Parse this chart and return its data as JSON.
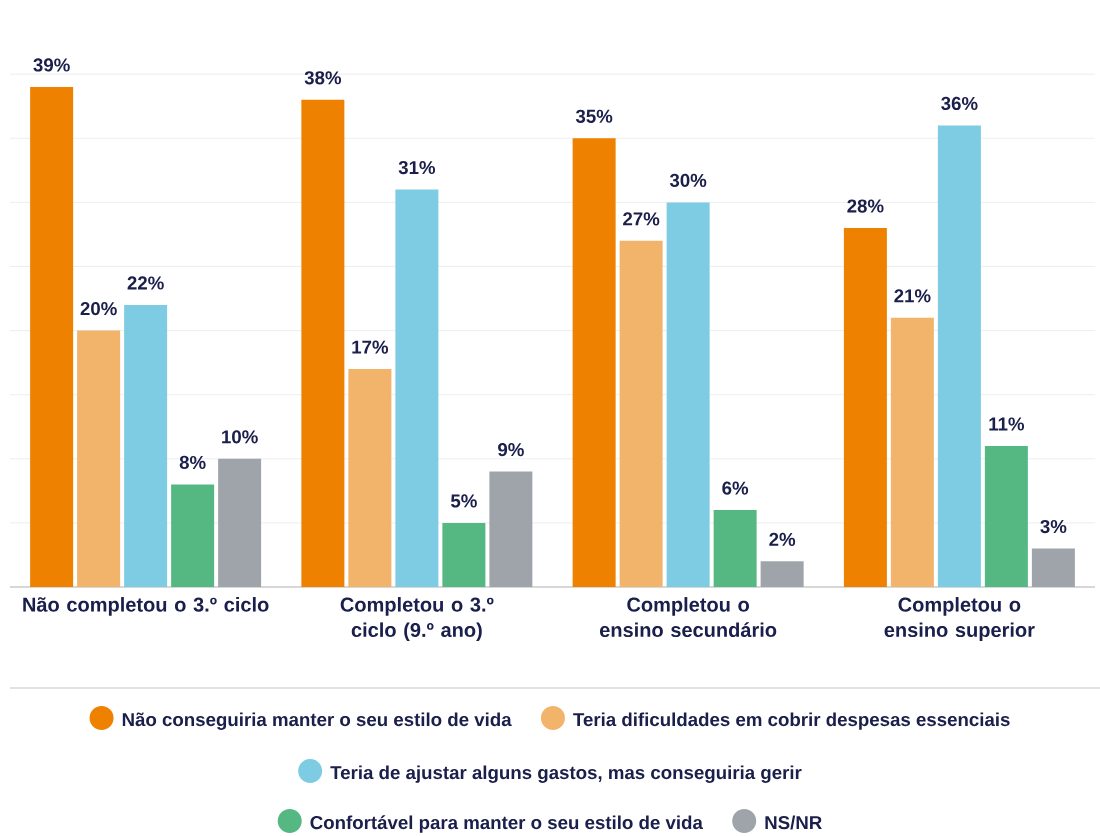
{
  "chart_data": {
    "type": "bar",
    "categories": [
      "Não completou o 3.º ciclo",
      "Completou o 3.º ciclo (9.º ano)",
      "Completou o ensino secundário",
      "Completou o ensino superior"
    ],
    "series": [
      {
        "name": "Não conseguiria manter o seu estilo de vida",
        "color": "#ee8100",
        "values": [
          39,
          38,
          35,
          28
        ],
        "value_labels": [
          "39%",
          "38%",
          "35%",
          "28%"
        ]
      },
      {
        "name": "Teria dificuldades em cobrir despesas essenciais",
        "color": "#f2b36b",
        "values": [
          20,
          17,
          27,
          21
        ],
        "value_labels": [
          "20%",
          "17%",
          "27%",
          "21%"
        ]
      },
      {
        "name": "Teria de ajustar alguns gastos, mas conseguiria gerir",
        "color": "#7ecce4",
        "values": [
          22,
          31,
          30,
          36
        ],
        "value_labels": [
          "22%",
          "31%",
          "30%",
          "36%"
        ]
      },
      {
        "name": "Confortável para manter o seu estilo de vida",
        "color": "#55b882",
        "values": [
          8,
          5,
          6,
          11
        ],
        "value_labels": [
          "8%",
          "5%",
          "6%",
          "11%"
        ]
      },
      {
        "name": "NS/NR",
        "color": "#9fa3aa",
        "values": [
          10,
          9,
          2,
          3
        ],
        "value_labels": [
          "10%",
          "9%",
          "2%",
          "3%"
        ]
      }
    ],
    "tick_labels": "x",
    "grid": "y",
    "legend": "bottom"
  }
}
